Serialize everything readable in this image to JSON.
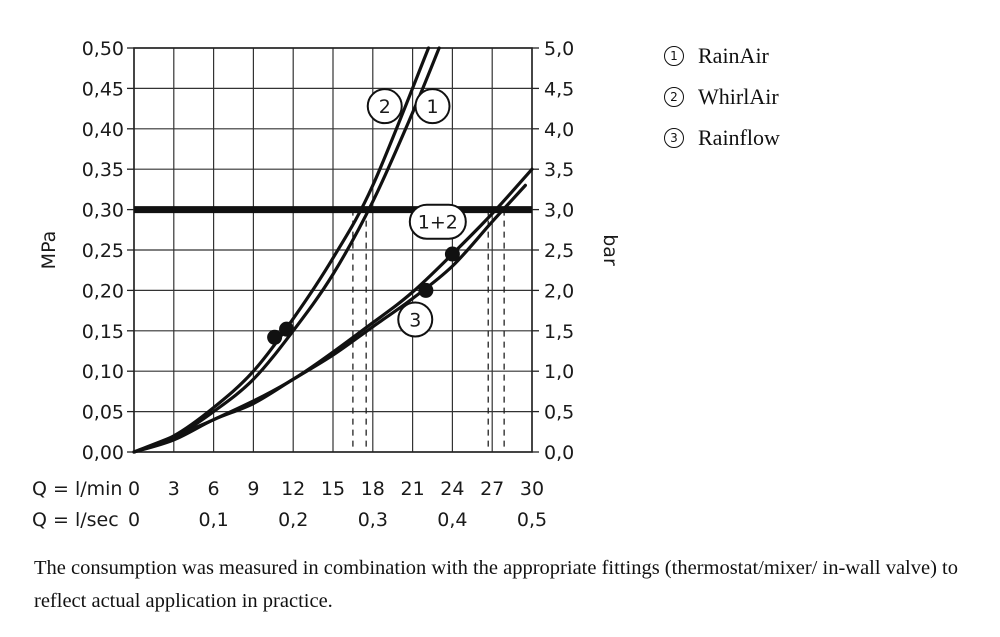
{
  "chart_data": {
    "type": "line",
    "ylabel": "MPa",
    "y2label": "bar",
    "x_axis_label": "Q = l/min",
    "x2_axis_label": "Q = l/sec",
    "xlim": [
      0,
      30
    ],
    "ylim": [
      0,
      0.5
    ],
    "x_ticks": [
      "0",
      "3",
      "6",
      "9",
      "12",
      "15",
      "18",
      "21",
      "24",
      "27",
      "30"
    ],
    "x2_ticks": [
      "0",
      "0,1",
      "0,2",
      "0,3",
      "0,4",
      "0,5"
    ],
    "y_ticks": [
      "0,00",
      "0,05",
      "0,10",
      "0,15",
      "0,20",
      "0,25",
      "0,30",
      "0,35",
      "0,40",
      "0,45",
      "0,50"
    ],
    "y2_ticks": [
      "0,0",
      "0,5",
      "1,0",
      "1,5",
      "2,0",
      "2,5",
      "3,0",
      "3,5",
      "4,0",
      "4,5",
      "5,0"
    ],
    "grid": true,
    "reference_line": {
      "y": 0.3
    },
    "series": [
      {
        "id": "1",
        "x": [
          0,
          3,
          6,
          9,
          12,
          15,
          18,
          21,
          23
        ],
        "y": [
          0,
          0.018,
          0.05,
          0.09,
          0.15,
          0.22,
          0.31,
          0.42,
          0.5
        ]
      },
      {
        "id": "2",
        "x": [
          0,
          3,
          6,
          9,
          12,
          15,
          18,
          22.2
        ],
        "y": [
          0,
          0.02,
          0.055,
          0.1,
          0.165,
          0.24,
          0.33,
          0.5
        ]
      },
      {
        "id": "3",
        "x": [
          0,
          3,
          6,
          9,
          12,
          15,
          18,
          21,
          24,
          27,
          29.5
        ],
        "y": [
          0,
          0.015,
          0.04,
          0.06,
          0.09,
          0.12,
          0.155,
          0.19,
          0.23,
          0.285,
          0.33
        ]
      },
      {
        "id": "1+2",
        "x": [
          0,
          6,
          12,
          18,
          21,
          24,
          27,
          30
        ],
        "y": [
          0,
          0.04,
          0.09,
          0.16,
          0.198,
          0.245,
          0.295,
          0.35
        ]
      }
    ],
    "markers": [
      {
        "x": 10.6,
        "y": 0.142
      },
      {
        "x": 11.5,
        "y": 0.152
      },
      {
        "x": 22.0,
        "y": 0.2
      },
      {
        "x": 24.0,
        "y": 0.245
      }
    ],
    "dashed_drops_x": [
      16.5,
      17.5,
      26.7,
      27.9
    ],
    "curve_labels": [
      {
        "text": "1",
        "x": 22.5,
        "y": 0.428
      },
      {
        "text": "2",
        "x": 18.9,
        "y": 0.428
      },
      {
        "text": "1+2",
        "x": 22.9,
        "y": 0.285
      },
      {
        "text": "3",
        "x": 21.2,
        "y": 0.164
      }
    ]
  },
  "legend": [
    {
      "num": "1",
      "label": "RainAir"
    },
    {
      "num": "2",
      "label": "WhirlAir"
    },
    {
      "num": "3",
      "label": "Rainflow"
    }
  ],
  "footnote": "The consumption was measured in combination with the appropriate fittings (thermostat/mixer/ in-wall valve) to reflect actual application in practice."
}
